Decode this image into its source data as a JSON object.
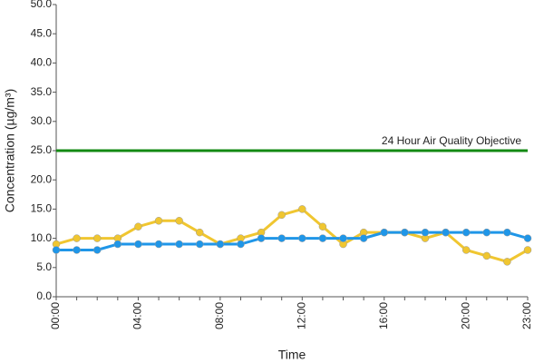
{
  "chart_data": {
    "type": "line",
    "x_label": "Time",
    "y_label": "Concentration (µg/m³)",
    "categories": [
      "00:00",
      null,
      null,
      null,
      "04:00",
      null,
      null,
      null,
      "08:00",
      null,
      null,
      null,
      "12:00",
      null,
      null,
      null,
      "16:00",
      null,
      null,
      null,
      "20:00",
      null,
      null,
      "23:00"
    ],
    "series": [
      {
        "color": "#f0c630",
        "values": [
          9,
          10,
          10,
          10,
          12,
          13,
          13,
          11,
          9,
          10,
          11,
          14,
          15,
          12,
          9,
          11,
          11,
          11,
          10,
          11,
          8,
          7,
          6,
          8
        ]
      },
      {
        "color": "#1f96e8",
        "values": [
          8,
          8,
          8,
          9,
          9,
          9,
          9,
          9,
          9,
          9,
          10,
          10,
          10,
          10,
          10,
          10,
          11,
          11,
          11,
          11,
          11,
          11,
          11,
          10
        ]
      }
    ],
    "reference_line": {
      "value": 25,
      "label": "24 Hour Air Quality Objective",
      "color": "#138a13"
    },
    "ylim": [
      0,
      50
    ],
    "yticks": [
      {
        "value": 0,
        "label": "0.0"
      },
      {
        "value": 5,
        "label": "5.0"
      },
      {
        "value": 10,
        "label": "10.0"
      },
      {
        "value": 15,
        "label": "15.0"
      },
      {
        "value": 20,
        "label": "20.0"
      },
      {
        "value": 25,
        "label": "25.0"
      },
      {
        "value": 30,
        "label": "30.0"
      },
      {
        "value": 35,
        "label": "35.0"
      },
      {
        "value": 40,
        "label": "40.0"
      },
      {
        "value": 45,
        "label": "45.0"
      },
      {
        "value": 50,
        "label": "50.0"
      }
    ]
  }
}
